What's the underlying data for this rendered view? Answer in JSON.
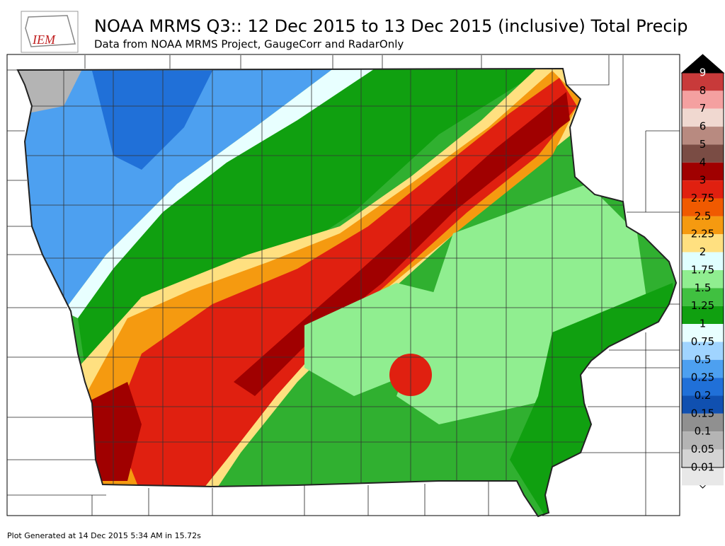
{
  "header": {
    "logo": "IEM",
    "title": "NOAA MRMS Q3:: 12 Dec 2015 to 13 Dec 2015 (inclusive) Total Precip",
    "subtitle": "Data from NOAA MRMS Project, GaugeCorr and RadarOnly"
  },
  "legend": {
    "labels": [
      "9",
      "8",
      "7",
      "6",
      "5",
      "4",
      "3",
      "2.75",
      "2.5",
      "2.25",
      "2",
      "1.75",
      "1.5",
      "1.25",
      "1",
      "0.75",
      "0.5",
      "0.25",
      "0.2",
      "0.15",
      "0.1",
      "0.05",
      "0.01"
    ],
    "colors": [
      "#c83a3a",
      "#f4a0a0",
      "#f0d8d0",
      "#b88a80",
      "#7a4c44",
      "#a00000",
      "#e02010",
      "#f05a00",
      "#f59a10",
      "#ffe080",
      "#e0ffff",
      "#90ee90",
      "#40c040",
      "#10a010",
      "#e8ffff",
      "#a0d4ff",
      "#4da0f0",
      "#2070d8",
      "#1050b0",
      "#909090",
      "#b4b4b4",
      "#d4d4d4",
      "#e8e8e8"
    ],
    "top_color": "#000000",
    "bottom_color": "#ffffff"
  },
  "footer": "Plot Generated at 14 Dec 2015 5:34 AM in 15.72s"
}
